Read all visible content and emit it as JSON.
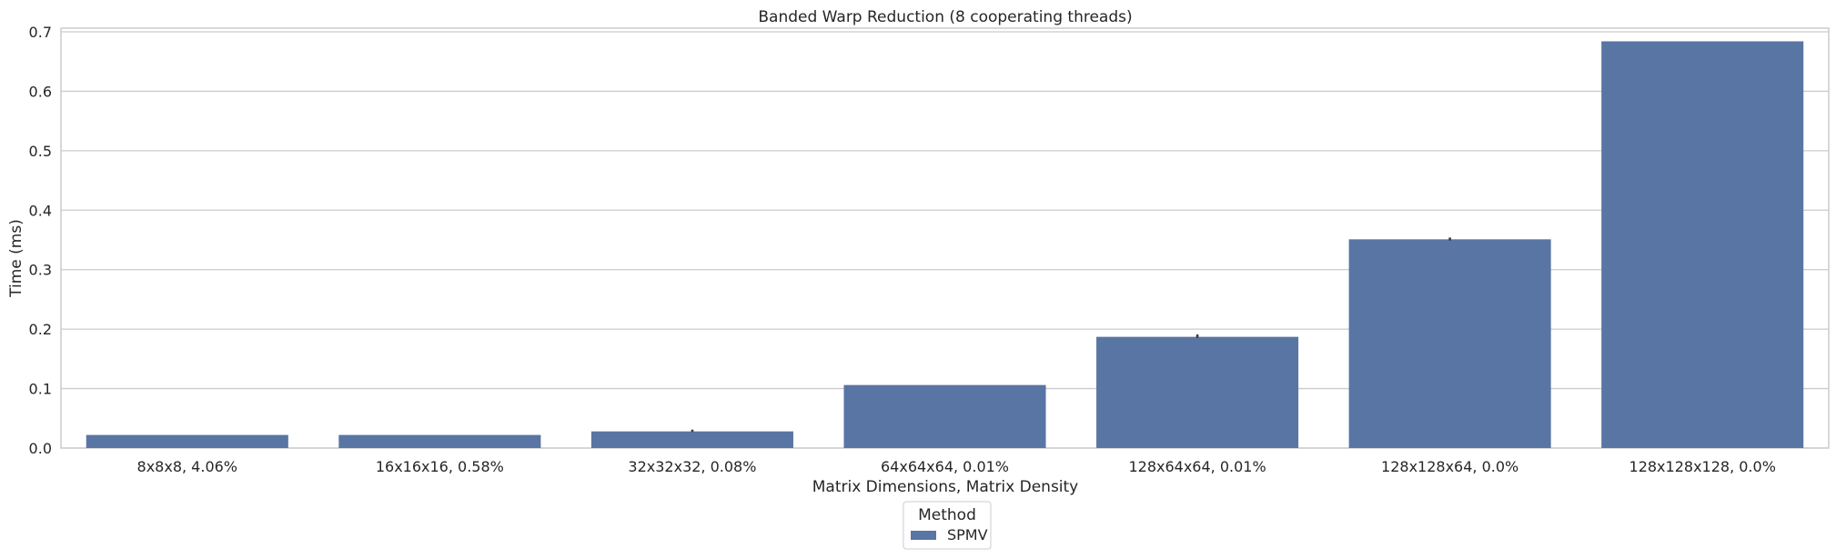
{
  "chart_data": {
    "type": "bar",
    "title": "Banded Warp Reduction (8 cooperating threads)",
    "xlabel": "Matrix Dimensions, Matrix Density",
    "ylabel": "Time (ms)",
    "categories": [
      "8x8x8, 4.06%",
      "16x16x16, 0.58%",
      "32x32x32, 0.08%",
      "64x64x64, 0.01%",
      "128x64x64, 0.01%",
      "128x128x64, 0.0%",
      "128x128x128, 0.0%"
    ],
    "series": [
      {
        "name": "SPMV",
        "color": "#5975a4",
        "values": [
          0.022,
          0.022,
          0.028,
          0.106,
          0.187,
          0.351,
          0.684
        ],
        "error_high": [
          0.022,
          0.022,
          0.031,
          0.106,
          0.191,
          0.354,
          0.684
        ],
        "error_low": [
          0.022,
          0.022,
          0.027,
          0.106,
          0.185,
          0.349,
          0.684
        ]
      }
    ],
    "ylim": [
      0,
      0.7
    ],
    "yticks": [
      "0.0",
      "0.1",
      "0.2",
      "0.3",
      "0.4",
      "0.5",
      "0.6",
      "0.7"
    ],
    "ytick_values": [
      0,
      0.1,
      0.2,
      0.3,
      0.4,
      0.5,
      0.6,
      0.7
    ],
    "grid": "horizontal",
    "legend": {
      "title": "Method",
      "placement": "bottom-center"
    }
  }
}
